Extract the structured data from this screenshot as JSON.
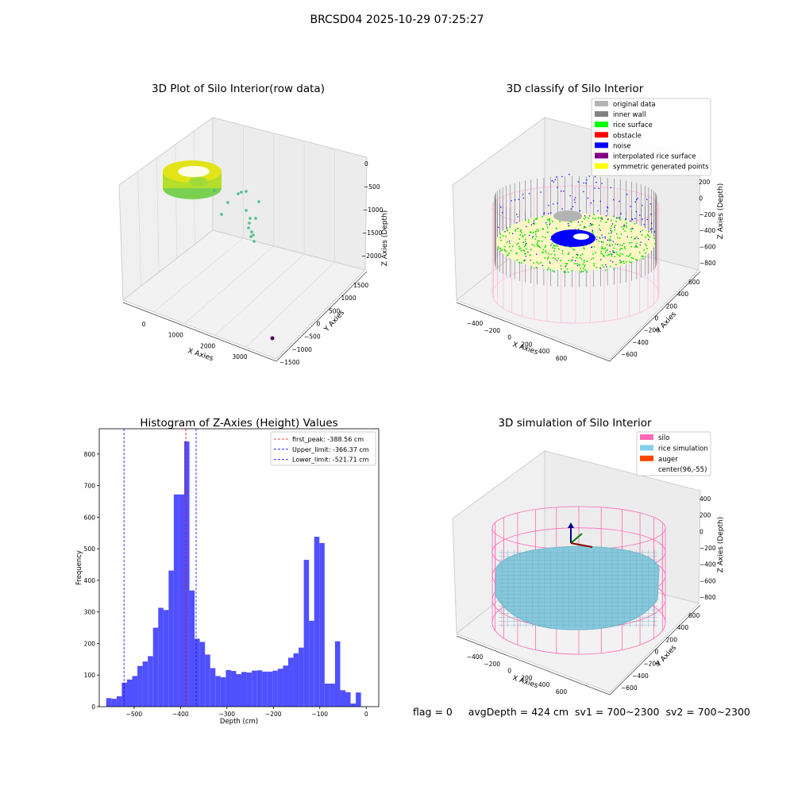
{
  "suptitle": "BRCSD04 2025-10-29 07:25:27",
  "status": {
    "flag": "flag = 0",
    "avg_depth": "avgDepth = 424 cm",
    "sv1": "sv1 = 700~2300",
    "sv2": "sv2 = 700~2300"
  },
  "chart_data": [
    {
      "type": "scatter3d",
      "title": "3D Plot of Silo Interior(row data)",
      "xlabel": "X Axies",
      "ylabel": "Y Axies",
      "zlabel": "Z Axies (Depth)",
      "xticks": [
        "0",
        "1000",
        "2000",
        "3000"
      ],
      "yticks": [
        "1500",
        "1000",
        "500",
        "0",
        "−500",
        "−1000",
        "−1500"
      ],
      "zticks": [
        "0",
        "−500",
        "−1000",
        "−1500",
        "−2000"
      ],
      "colors": {
        "ring_top": "#f2e41c",
        "ring_bottom": "#7ad151",
        "points": "#4dbf87",
        "outlier": "#440154"
      }
    },
    {
      "type": "scatter3d",
      "title": "3D classify of Silo Interior",
      "xlabel": "X Axies",
      "ylabel": "Y Axies",
      "zlabel": "Z Axies (Depth)",
      "xticks": [
        "−400",
        "−200",
        "0",
        "200",
        "400",
        "600"
      ],
      "yticks": [
        "600",
        "400",
        "200",
        "0",
        "−200",
        "−400",
        "−600"
      ],
      "zticks": [
        "200",
        "0",
        "−200",
        "−400",
        "−600",
        "−800"
      ],
      "legend_position": "top-right",
      "legend": [
        {
          "label": "original data",
          "color": "#b3b3b3"
        },
        {
          "label": "inner wall",
          "color": "#808080"
        },
        {
          "label": "rice surface",
          "color": "#00ff00"
        },
        {
          "label": "obstacle",
          "color": "#ff0000"
        },
        {
          "label": "noise",
          "color": "#0000ff"
        },
        {
          "label": "interpolated rice surface",
          "color": "#800080"
        },
        {
          "label": "symmetric generated points",
          "color": "#ffff00"
        }
      ]
    },
    {
      "type": "bar",
      "title": "Histogram of Z-Axies (Height) Values",
      "xlabel": "Depth (cm)",
      "ylabel": "Frequency",
      "xlim": [
        -575,
        27
      ],
      "ylim": [
        0,
        880
      ],
      "xticks": [
        -500,
        -400,
        -300,
        -200,
        -100,
        0
      ],
      "yticks": [
        0,
        100,
        200,
        300,
        400,
        500,
        600,
        700,
        800
      ],
      "bar_color": "#5050ff",
      "bin_width": 11.2,
      "bins_start": [
        -560,
        -548.8,
        -537.6,
        -526.4,
        -515.2,
        -504,
        -492.8,
        -481.6,
        -470.4,
        -459.2,
        -448,
        -436.8,
        -425.6,
        -414.4,
        -403.2,
        -392,
        -380.8,
        -369.6,
        -358.4,
        -347.2,
        -336,
        -324.8,
        -313.6,
        -302.4,
        -291.2,
        -280,
        -268.8,
        -257.6,
        -246.4,
        -235.2,
        -224,
        -212.8,
        -201.6,
        -190.4,
        -179.2,
        -168,
        -156.8,
        -145.6,
        -134.4,
        -123.2,
        -112,
        -100.8,
        -89.6,
        -78.4,
        -67.2,
        -56,
        -44.8,
        -33.6,
        -22.4,
        -11.2
      ],
      "values": [
        27,
        25,
        33,
        76,
        86,
        97,
        129,
        143,
        160,
        250,
        313,
        306,
        431,
        672,
        672,
        840,
        368,
        215,
        205,
        165,
        122,
        97,
        93,
        116,
        113,
        103,
        110,
        108,
        114,
        115,
        111,
        111,
        114,
        120,
        130,
        155,
        169,
        187,
        465,
        272,
        538,
        518,
        73,
        73,
        207,
        52,
        46,
        10,
        45,
        0
      ],
      "lines": [
        {
          "label": "first_peak: -388.56 cm",
          "x": -388.56,
          "color": "#ff0000"
        },
        {
          "label": "Upper_limit: -366.37 cm",
          "x": -366.37,
          "color": "#0000ff"
        },
        {
          "label": "Lower_limit: -521.71 cm",
          "x": -521.71,
          "color": "#0000ff"
        }
      ],
      "legend_position": "top-right"
    },
    {
      "type": "surface3d",
      "title": "3D simulation of Silo Interior",
      "xlabel": "X Axies",
      "ylabel": "Y Axies",
      "zlabel": "Z Axies (Depth)",
      "xticks": [
        "−400",
        "−200",
        "0",
        "200",
        "400",
        "600"
      ],
      "yticks": [
        "600",
        "400",
        "200",
        "0",
        "−200",
        "−400",
        "−600"
      ],
      "zticks": [
        "400",
        "200",
        "0",
        "−200",
        "−400",
        "−600",
        "−800"
      ],
      "legend_position": "top-right",
      "legend": [
        {
          "label": "silo",
          "color": "#ff69b4"
        },
        {
          "label": "rice simulation",
          "color": "#87ceeb"
        },
        {
          "label": "auger",
          "color": "#ff4500"
        },
        {
          "label": "center(96,-55)",
          "color": "none"
        }
      ]
    }
  ]
}
